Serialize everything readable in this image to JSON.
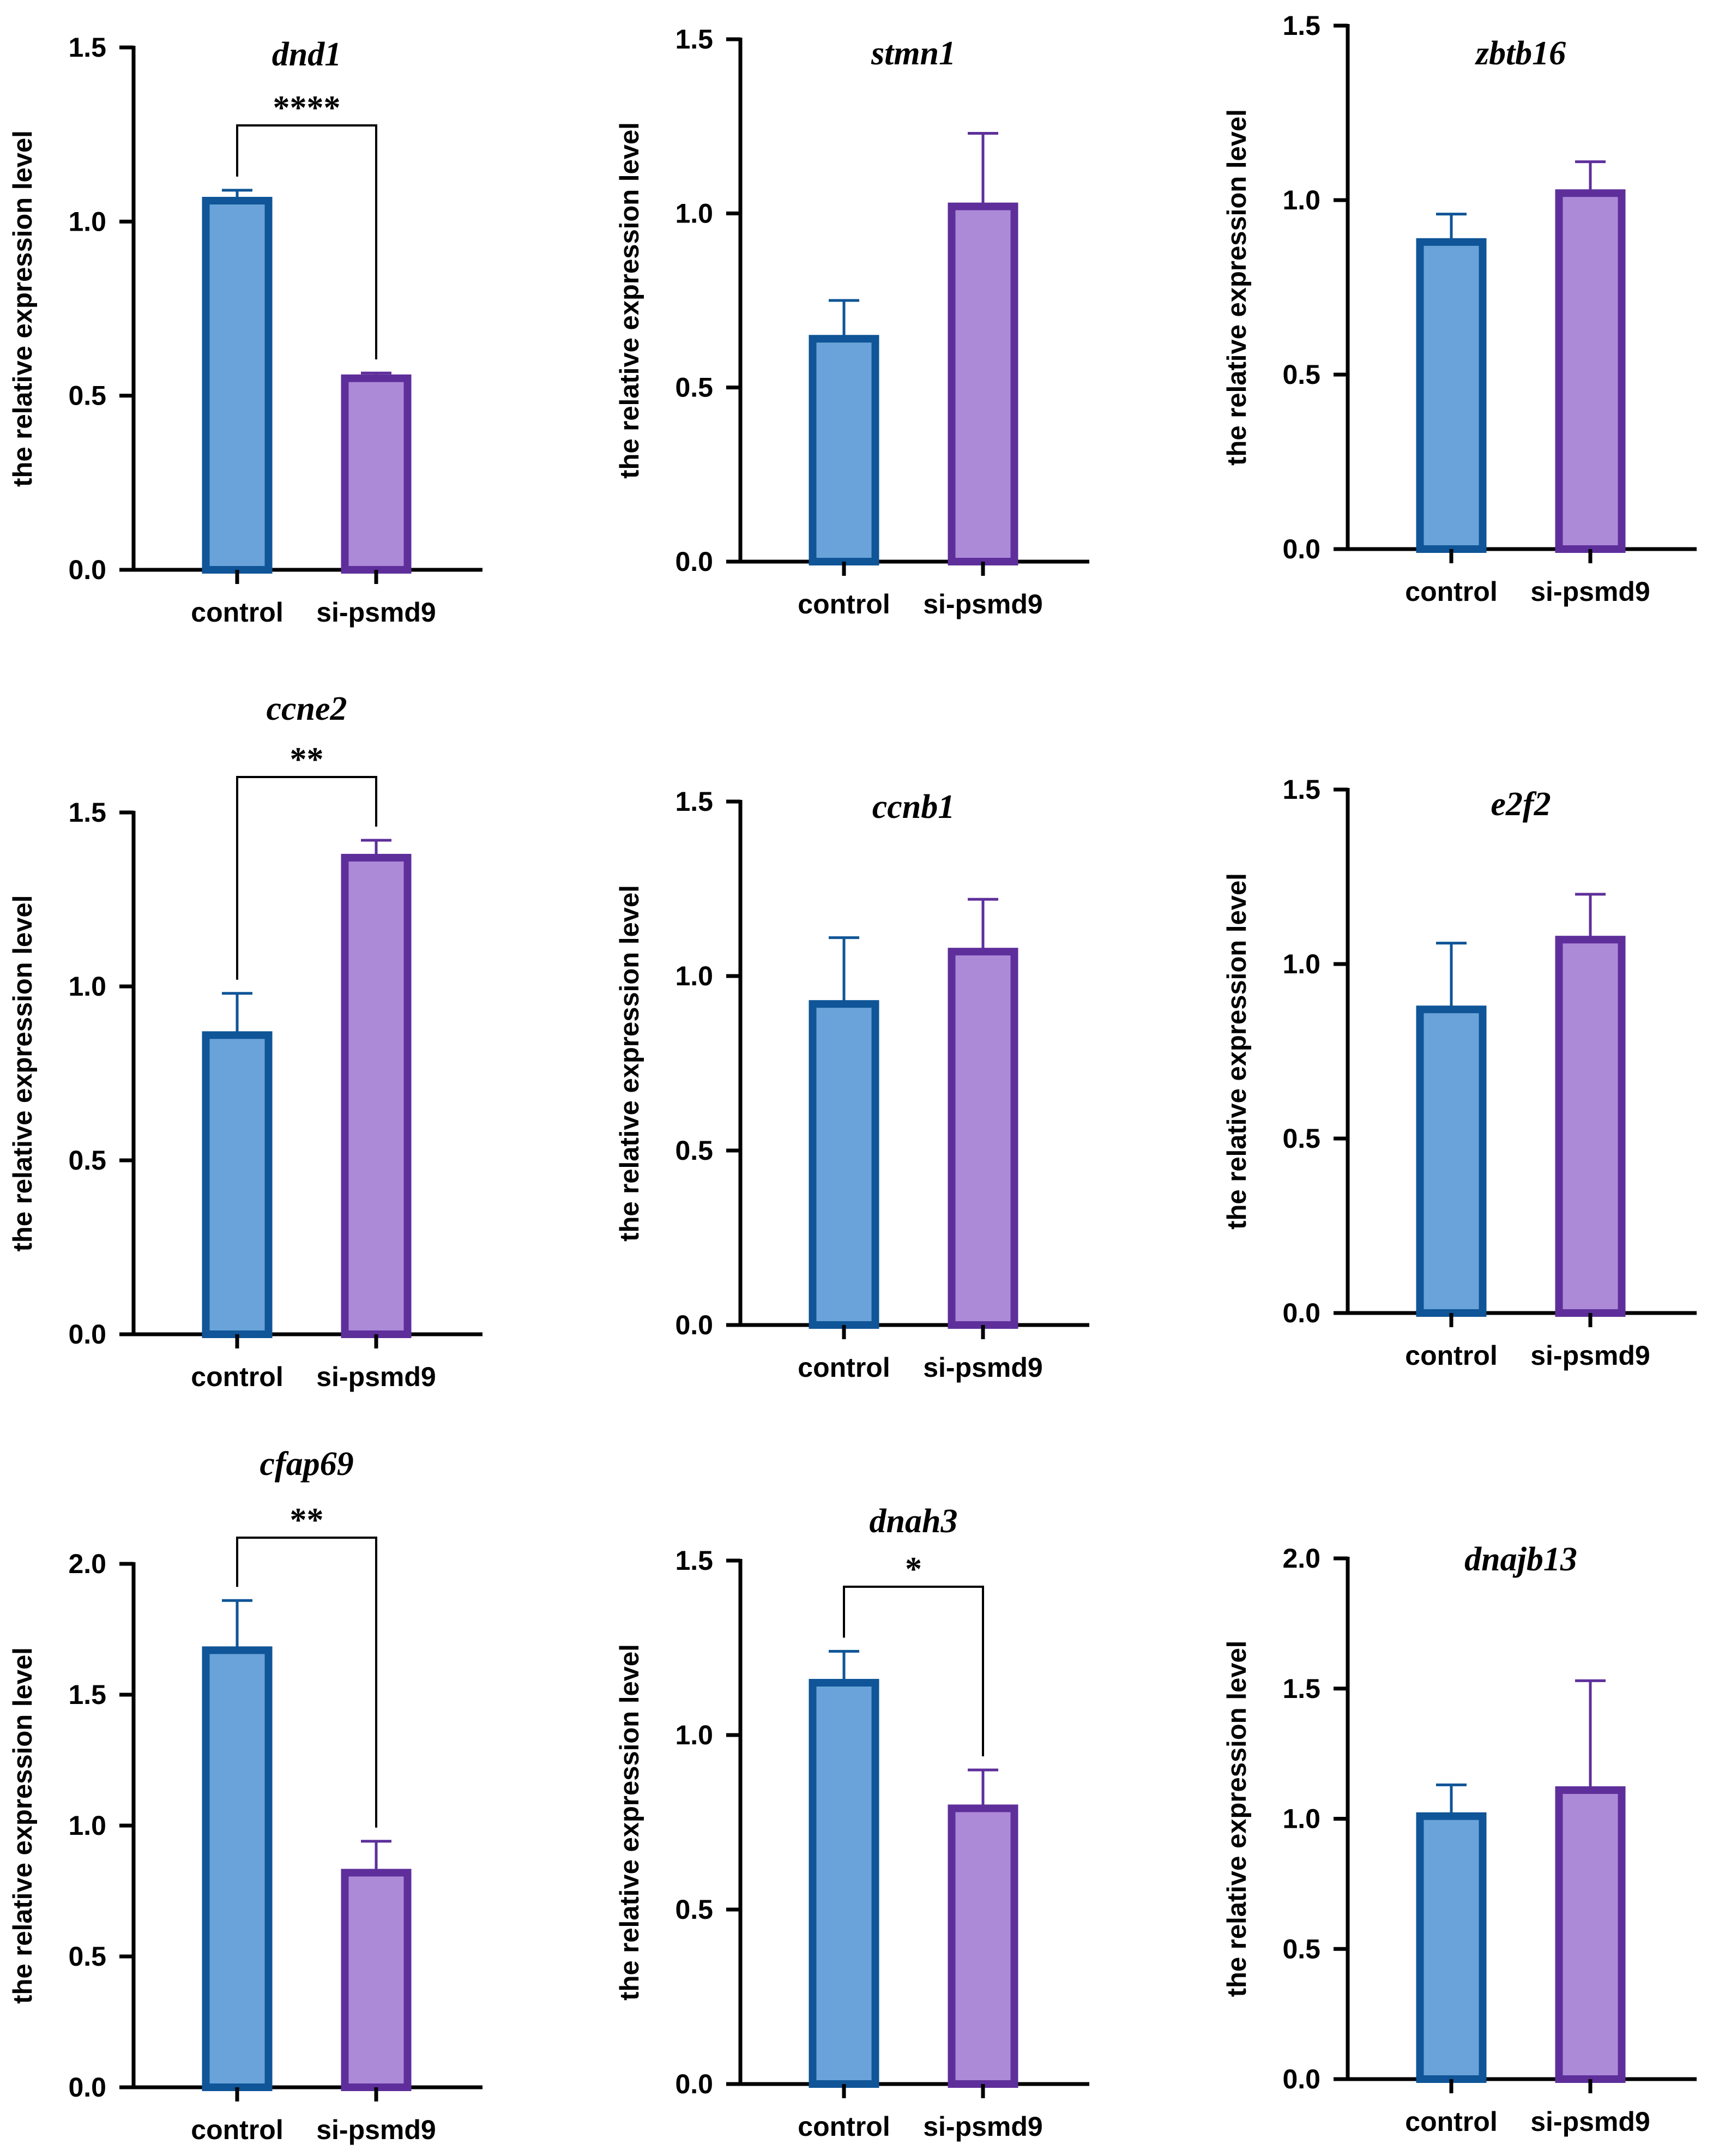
{
  "figure": {
    "colors": {
      "control_fill": "#6aa3d9",
      "control_edge": "#0f5597",
      "treatment_fill": "#ad8ad8",
      "treatment_edge": "#5e2f9b",
      "axis": "#000000"
    }
  },
  "chart_data": [
    {
      "type": "bar",
      "title": "dnd1",
      "ylabel": "the relative expression level",
      "categories": [
        "control",
        "si-psmd9"
      ],
      "values": [
        1.06,
        0.55
      ],
      "errors": [
        0.03,
        0.015
      ],
      "ylim": [
        0,
        1.5
      ],
      "yticks": [
        0.0,
        0.5,
        1.0,
        1.5
      ],
      "ytick_labels": [
        "0.0",
        "0.5",
        "1.0",
        "1.5"
      ],
      "significance": "****"
    },
    {
      "type": "bar",
      "title": "stmn1",
      "ylabel": "the relative expression level",
      "categories": [
        "control",
        "si-psmd9"
      ],
      "values": [
        0.64,
        1.02
      ],
      "errors": [
        0.11,
        0.21
      ],
      "ylim": [
        0,
        1.5
      ],
      "yticks": [
        0.0,
        0.5,
        1.0,
        1.5
      ],
      "ytick_labels": [
        "0.0",
        "0.5",
        "1.0",
        "1.5"
      ],
      "significance": ""
    },
    {
      "type": "bar",
      "title": "zbtb16",
      "ylabel": "the relative expression level",
      "categories": [
        "control",
        "si-psmd9"
      ],
      "values": [
        0.88,
        1.02
      ],
      "errors": [
        0.08,
        0.09
      ],
      "ylim": [
        0,
        1.5
      ],
      "yticks": [
        0.0,
        0.5,
        1.0,
        1.5
      ],
      "ytick_labels": [
        "0.0",
        "0.5",
        "1.0",
        "1.5"
      ],
      "significance": ""
    },
    {
      "type": "bar",
      "title": "ccne2",
      "ylabel": "the relative expression level",
      "categories": [
        "control",
        "si-psmd9"
      ],
      "values": [
        0.86,
        1.37
      ],
      "errors": [
        0.12,
        0.05
      ],
      "ylim": [
        0,
        1.5
      ],
      "yticks": [
        0.0,
        0.5,
        1.0,
        1.5
      ],
      "ytick_labels": [
        "0.0",
        "0.5",
        "1.0",
        "1.5"
      ],
      "significance": "**"
    },
    {
      "type": "bar",
      "title": "ccnb1",
      "ylabel": "the relative expression level",
      "categories": [
        "control",
        "si-psmd9"
      ],
      "values": [
        0.92,
        1.07
      ],
      "errors": [
        0.19,
        0.15
      ],
      "ylim": [
        0,
        1.5
      ],
      "yticks": [
        0.0,
        0.5,
        1.0,
        1.5
      ],
      "ytick_labels": [
        "0.0",
        "0.5",
        "1.0",
        "1.5"
      ],
      "significance": ""
    },
    {
      "type": "bar",
      "title": "e2f2",
      "ylabel": "the relative expression level",
      "categories": [
        "control",
        "si-psmd9"
      ],
      "values": [
        0.87,
        1.07
      ],
      "errors": [
        0.19,
        0.13
      ],
      "ylim": [
        0,
        1.5
      ],
      "yticks": [
        0.0,
        0.5,
        1.0,
        1.5
      ],
      "ytick_labels": [
        "0.0",
        "0.5",
        "1.0",
        "1.5"
      ],
      "significance": ""
    },
    {
      "type": "bar",
      "title": "cfap69",
      "ylabel": "the relative expression level",
      "categories": [
        "control",
        "si-psmd9"
      ],
      "values": [
        1.67,
        0.82
      ],
      "errors": [
        0.19,
        0.12
      ],
      "ylim": [
        0,
        2.0
      ],
      "yticks": [
        0.0,
        0.5,
        1.0,
        1.5,
        2.0
      ],
      "ytick_labels": [
        "0.0",
        "0.5",
        "1.0",
        "1.5",
        "2.0"
      ],
      "significance": "**"
    },
    {
      "type": "bar",
      "title": "dnah3",
      "ylabel": "the relative expression level",
      "categories": [
        "control",
        "si-psmd9"
      ],
      "values": [
        1.15,
        0.79
      ],
      "errors": [
        0.09,
        0.11
      ],
      "ylim": [
        0,
        1.5
      ],
      "yticks": [
        0.0,
        0.5,
        1.0,
        1.5
      ],
      "ytick_labels": [
        "0.0",
        "0.5",
        "1.0",
        "1.5"
      ],
      "significance": "*"
    },
    {
      "type": "bar",
      "title": "dnajb13",
      "ylabel": "the relative expression level",
      "categories": [
        "control",
        "si-psmd9"
      ],
      "values": [
        1.01,
        1.11
      ],
      "errors": [
        0.12,
        0.42
      ],
      "ylim": [
        0,
        2.0
      ],
      "yticks": [
        0.0,
        0.5,
        1.0,
        1.5,
        2.0
      ],
      "ytick_labels": [
        "0.0",
        "0.5",
        "1.0",
        "1.5",
        "2.0"
      ],
      "significance": ""
    }
  ]
}
